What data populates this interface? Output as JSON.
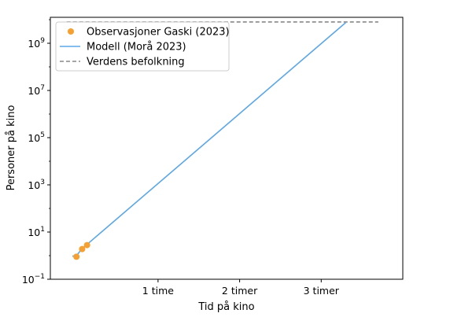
{
  "chart_data": {
    "type": "line",
    "title": "",
    "xlabel": "Tid på kino",
    "ylabel": "Personer på kino",
    "yscale": "log",
    "xlim": [
      -0.32,
      4.0
    ],
    "ylim_exponents": [
      -1,
      10.1
    ],
    "xticks": [
      {
        "value": 1,
        "label": "1 time"
      },
      {
        "value": 2,
        "label": "2 timer"
      },
      {
        "value": 3,
        "label": "3 timer"
      }
    ],
    "yticks": [
      {
        "base": "10",
        "exp": "−1",
        "value": 0.1
      },
      {
        "base": "10",
        "exp": "1",
        "value": 10
      },
      {
        "base": "10",
        "exp": "3",
        "value": 1000
      },
      {
        "base": "10",
        "exp": "5",
        "value": 100000
      },
      {
        "base": "10",
        "exp": "7",
        "value": 10000000
      },
      {
        "base": "10",
        "exp": "9",
        "value": 1000000000
      }
    ],
    "grid": false,
    "legend_position": "top-left",
    "series": [
      {
        "name": "Observasjoner Gaski (2023)",
        "kind": "scatter",
        "color": "#f5a030",
        "x": [
          0.0,
          0.07,
          0.13
        ],
        "y": [
          0.9,
          1.9,
          2.8
        ]
      },
      {
        "name": "Modell (Morå 2023)",
        "kind": "line",
        "color": "#5ba7e8",
        "x": [
          -0.05,
          0.0,
          0.07,
          0.13,
          3.3
        ],
        "y": [
          0.95,
          1.0,
          2.0,
          3.0,
          7500000000
        ]
      },
      {
        "name": "Verdens befolkning",
        "kind": "hline",
        "color": "#888888",
        "dashed": true,
        "x_range": [
          -0.12,
          3.7
        ],
        "y": 8000000000
      }
    ]
  }
}
